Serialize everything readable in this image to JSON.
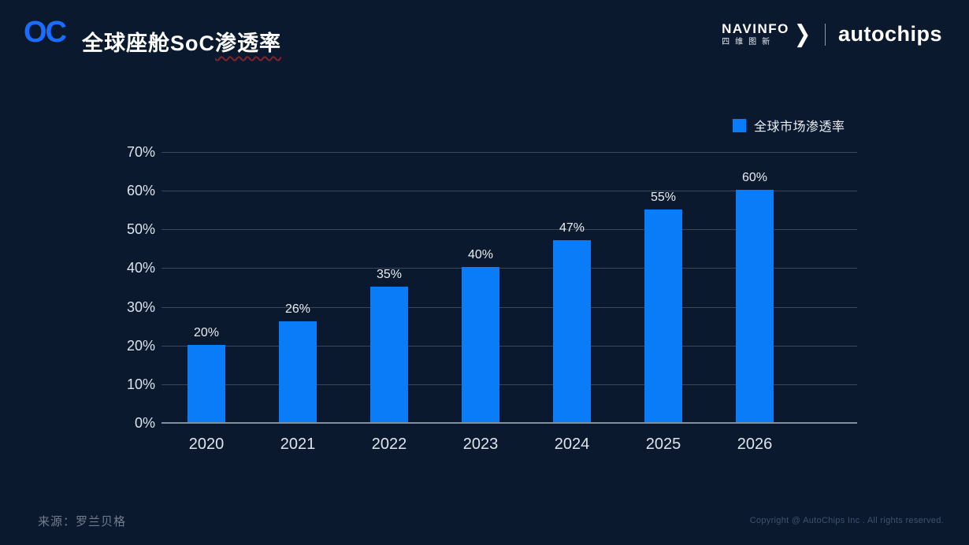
{
  "slide": {
    "logo_text": "OC",
    "title_main": "全球座舱SoC",
    "title_underlined": "渗透率",
    "brand": {
      "navinfo_en": "NAVINFO",
      "navinfo_cn": "四维图新",
      "chevron": "❯",
      "autochips": "autochips"
    },
    "source": "来源：罗兰贝格",
    "copyright": "Copyright @ AutoChips Inc . All rights reserved."
  },
  "chart_data": {
    "type": "bar",
    "title": "全球座舱SoC渗透率",
    "categories": [
      "2020",
      "2021",
      "2022",
      "2023",
      "2024",
      "2025",
      "2026"
    ],
    "values": [
      20,
      26,
      35,
      40,
      47,
      55,
      60
    ],
    "value_suffix": "%",
    "legend_label": "全球市场渗透率",
    "legend_position": "top-right",
    "xlabel": "",
    "ylabel": "",
    "ylim": [
      0,
      70
    ],
    "ytick_step": 10,
    "grid": true,
    "bar_color": "#0a7cf8",
    "background_color": "#0a192e",
    "label_color": "#dde4ee"
  }
}
